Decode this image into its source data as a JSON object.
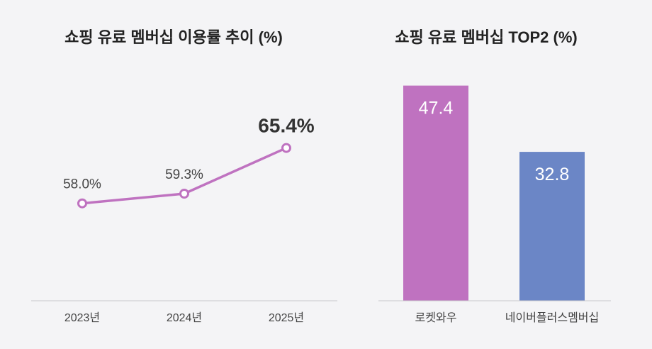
{
  "chart_data": [
    {
      "type": "line",
      "title": "쇼핑 유료 멤버십 이용률 추이 (%)",
      "categories": [
        "2023년",
        "2024년",
        "2025년"
      ],
      "values": [
        58.0,
        59.3,
        65.4
      ],
      "data_labels": [
        "58.0%",
        "59.3%",
        "65.4%"
      ],
      "ylim": [
        45,
        70
      ],
      "grid": false,
      "colors": {
        "line": "#bf72c0",
        "marker_fill": "#ffffff"
      }
    },
    {
      "type": "bar",
      "title": "쇼핑 유료 멤버십 TOP2 (%)",
      "categories": [
        "로켓와우",
        "네이버플러스멤버십"
      ],
      "values": [
        47.4,
        32.8
      ],
      "data_labels": [
        "47.4",
        "32.8"
      ],
      "ylim": [
        0,
        50
      ],
      "grid": false,
      "colors": {
        "bars": [
          "#bf72c0",
          "#6b86c6"
        ]
      }
    }
  ],
  "colors": {
    "background": "#f4f4f6",
    "title_text": "#222222",
    "label_text": "#444444",
    "axis_line": "#c8c8cc",
    "bar_label_text": "#ffffff"
  }
}
